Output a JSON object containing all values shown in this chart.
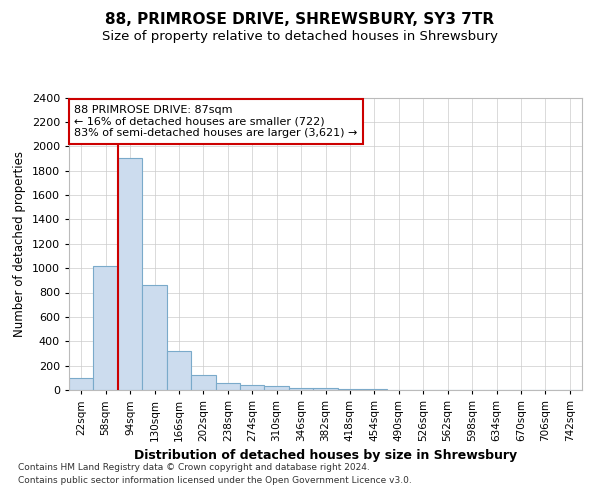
{
  "title1": "88, PRIMROSE DRIVE, SHREWSBURY, SY3 7TR",
  "title2": "Size of property relative to detached houses in Shrewsbury",
  "xlabel": "Distribution of detached houses by size in Shrewsbury",
  "ylabel": "Number of detached properties",
  "footnote1": "Contains HM Land Registry data © Crown copyright and database right 2024.",
  "footnote2": "Contains public sector information licensed under the Open Government Licence v3.0.",
  "bin_labels": [
    "22sqm",
    "58sqm",
    "94sqm",
    "130sqm",
    "166sqm",
    "202sqm",
    "238sqm",
    "274sqm",
    "310sqm",
    "346sqm",
    "382sqm",
    "418sqm",
    "454sqm",
    "490sqm",
    "526sqm",
    "562sqm",
    "598sqm",
    "634sqm",
    "670sqm",
    "706sqm",
    "742sqm"
  ],
  "bin_values": [
    100,
    1020,
    1900,
    860,
    320,
    120,
    55,
    40,
    30,
    20,
    15,
    10,
    5,
    3,
    2,
    2,
    1,
    1,
    1,
    1,
    0
  ],
  "bar_color": "#ccdcee",
  "bar_edge_color": "#7aaaca",
  "property_line_x": 2.0,
  "property_line_color": "#cc0000",
  "annotation_text": "88 PRIMROSE DRIVE: 87sqm\n← 16% of detached houses are smaller (722)\n83% of semi-detached houses are larger (3,621) →",
  "annotation_box_color": "#ffffff",
  "annotation_box_edge": "#cc0000",
  "ylim": [
    0,
    2400
  ],
  "yticks": [
    0,
    200,
    400,
    600,
    800,
    1000,
    1200,
    1400,
    1600,
    1800,
    2000,
    2200,
    2400
  ],
  "bg_color": "#ffffff",
  "grid_color": "#cccccc",
  "title1_fontsize": 11,
  "title2_fontsize": 9.5,
  "xlabel_fontsize": 9,
  "ylabel_fontsize": 8.5,
  "tick_fontsize": 8,
  "xtick_fontsize": 7.5
}
